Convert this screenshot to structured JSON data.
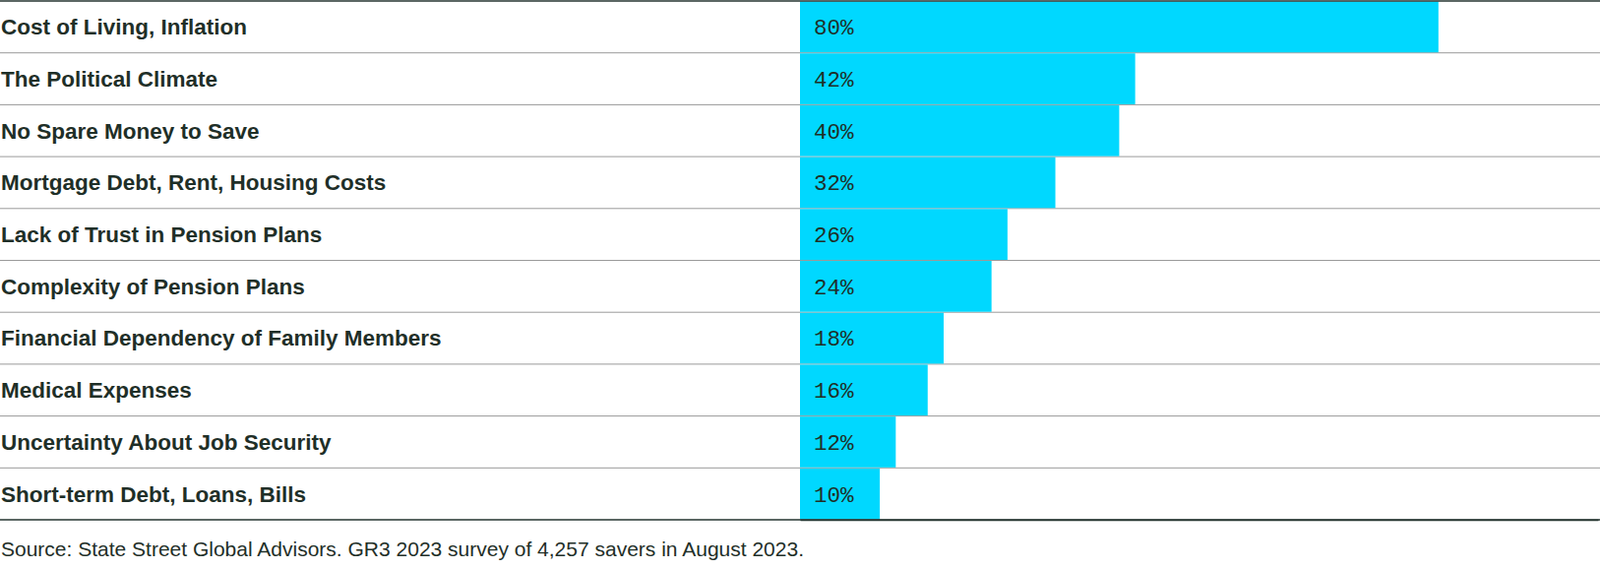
{
  "chart_data": {
    "type": "bar",
    "orientation": "horizontal",
    "categories": [
      "Cost of Living, Inflation",
      "The Political Climate",
      "No Spare Money to Save",
      "Mortgage Debt, Rent, Housing Costs",
      "Lack of Trust in Pension Plans",
      "Complexity of Pension Plans",
      "Financial Dependency of Family Members",
      "Medical Expenses",
      "Uncertainty About Job Security",
      "Short-term Debt, Loans, Bills"
    ],
    "values": [
      80,
      42,
      40,
      32,
      26,
      24,
      18,
      16,
      12,
      10
    ],
    "value_labels": [
      "80%",
      "42%",
      "40%",
      "32%",
      "26%",
      "24%",
      "18%",
      "16%",
      "12%",
      "10%"
    ],
    "data_labels": true,
    "color": "#00d8ff",
    "xlim": [
      0,
      100
    ],
    "tick_labels": "y",
    "annotations": [
      "Source: State Street Global Advisors. GR3 2023 survey of 4,257 savers in August 2023."
    ]
  }
}
